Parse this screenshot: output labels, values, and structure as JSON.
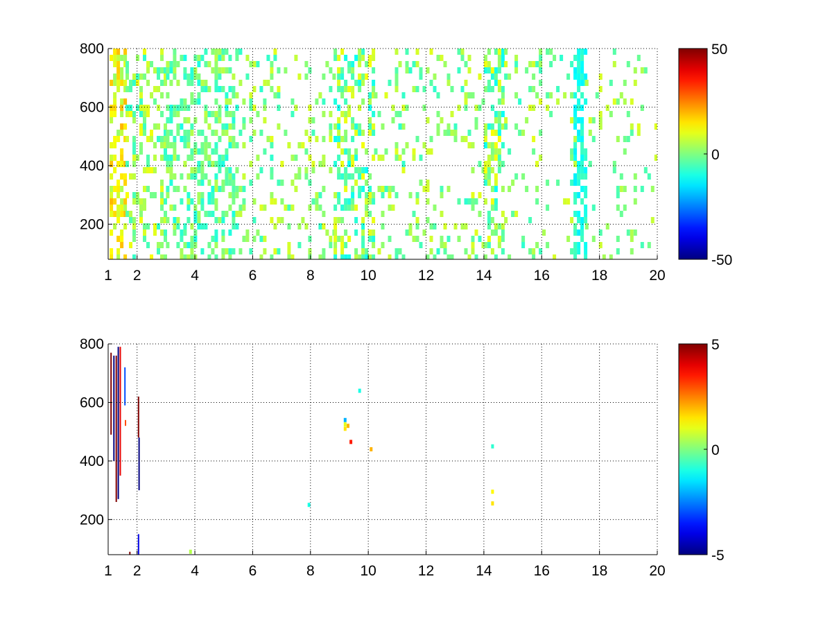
{
  "figure": {
    "background": "#ffffff",
    "colormap": "jet"
  },
  "chart_data": [
    {
      "type": "heatmap",
      "title": "",
      "xlabel": "",
      "ylabel": "",
      "xlim": [
        1,
        20
      ],
      "ylim": [
        80,
        800
      ],
      "x_ticks": [
        1,
        2,
        4,
        6,
        8,
        10,
        12,
        14,
        16,
        18,
        20
      ],
      "y_ticks": [
        200,
        400,
        600,
        800
      ],
      "grid": true,
      "colorbar": {
        "clim": [
          -50,
          50
        ],
        "ticks": [
          -50,
          0,
          50
        ]
      },
      "data_description": "Sparse cells, mostly near zero (green/cyan/yellow); dense columns near x≈1.2–1.5, 4–5, 9–10, 14.3, 17.3",
      "column_bands": [
        {
          "x": [
            1.05,
            1.6
          ],
          "y": [
            80,
            800
          ],
          "density": 0.55,
          "values": [
            2,
            20
          ]
        },
        {
          "x": [
            1.6,
            3.0
          ],
          "y": [
            80,
            800
          ],
          "density": 0.35,
          "values": [
            -8,
            12
          ]
        },
        {
          "x": [
            3.0,
            5.4
          ],
          "y": [
            80,
            800
          ],
          "density": 0.42,
          "values": [
            -10,
            6
          ]
        },
        {
          "x": [
            5.4,
            8.8
          ],
          "y": [
            80,
            800
          ],
          "density": 0.18,
          "values": [
            -8,
            10
          ]
        },
        {
          "x": [
            8.8,
            10.2
          ],
          "y": [
            80,
            800
          ],
          "density": 0.45,
          "values": [
            -12,
            12
          ]
        },
        {
          "x": [
            10.2,
            14.0
          ],
          "y": [
            80,
            800
          ],
          "density": 0.16,
          "values": [
            -8,
            10
          ]
        },
        {
          "x": [
            14.0,
            14.7
          ],
          "y": [
            80,
            800
          ],
          "density": 0.5,
          "values": [
            -12,
            12
          ]
        },
        {
          "x": [
            14.7,
            17.1
          ],
          "y": [
            80,
            800
          ],
          "density": 0.12,
          "values": [
            -8,
            10
          ]
        },
        {
          "x": [
            17.1,
            17.5
          ],
          "y": [
            80,
            800
          ],
          "density": 0.6,
          "values": [
            -14,
            -6
          ]
        },
        {
          "x": [
            17.5,
            20.0
          ],
          "y": [
            80,
            800
          ],
          "density": 0.1,
          "values": [
            -6,
            10
          ]
        }
      ]
    },
    {
      "type": "heatmap",
      "title": "",
      "xlabel": "",
      "ylabel": "",
      "xlim": [
        1,
        20
      ],
      "ylim": [
        80,
        800
      ],
      "x_ticks": [
        1,
        2,
        4,
        6,
        8,
        10,
        12,
        14,
        16,
        18,
        20
      ],
      "y_ticks": [
        200,
        400,
        600,
        800
      ],
      "grid": true,
      "colorbar": {
        "clim": [
          -5,
          5
        ],
        "ticks": [
          -5,
          0,
          5
        ]
      },
      "segments": [
        {
          "x": 1.1,
          "y": [
            490,
            770
          ],
          "value": 5
        },
        {
          "x": 1.2,
          "y": [
            400,
            760
          ],
          "value": -5
        },
        {
          "x": 1.28,
          "y": [
            260,
            760
          ],
          "value": 5
        },
        {
          "x": 1.35,
          "y": [
            270,
            790
          ],
          "value": -5
        },
        {
          "x": 1.42,
          "y": [
            350,
            790
          ],
          "value": 4
        },
        {
          "x": 1.58,
          "y": [
            590,
            720
          ],
          "value": -3
        },
        {
          "x": 1.6,
          "y": [
            520,
            540
          ],
          "value": 3
        },
        {
          "x": 2.05,
          "y": [
            480,
            620
          ],
          "value": 5
        },
        {
          "x": 2.07,
          "y": [
            300,
            480
          ],
          "value": -5
        },
        {
          "x": 2.05,
          "y": [
            80,
            150
          ],
          "value": -4
        },
        {
          "x": 1.75,
          "y": [
            80,
            90
          ],
          "value": 5
        }
      ],
      "cells": [
        {
          "x": 9.2,
          "y": 540,
          "value": -2
        },
        {
          "x": 9.2,
          "y": 525,
          "value": 1
        },
        {
          "x": 9.2,
          "y": 510,
          "value": 1.5
        },
        {
          "x": 9.3,
          "y": 520,
          "value": 2
        },
        {
          "x": 9.4,
          "y": 465,
          "value": 3.5
        },
        {
          "x": 9.7,
          "y": 640,
          "value": -1
        },
        {
          "x": 10.1,
          "y": 440,
          "value": 2
        },
        {
          "x": 14.3,
          "y": 450,
          "value": -0.8
        },
        {
          "x": 14.3,
          "y": 295,
          "value": 1.3
        },
        {
          "x": 14.3,
          "y": 255,
          "value": 1.5
        },
        {
          "x": 7.95,
          "y": 250,
          "value": -1
        },
        {
          "x": 3.85,
          "y": 90,
          "value": 0.5
        }
      ]
    }
  ]
}
